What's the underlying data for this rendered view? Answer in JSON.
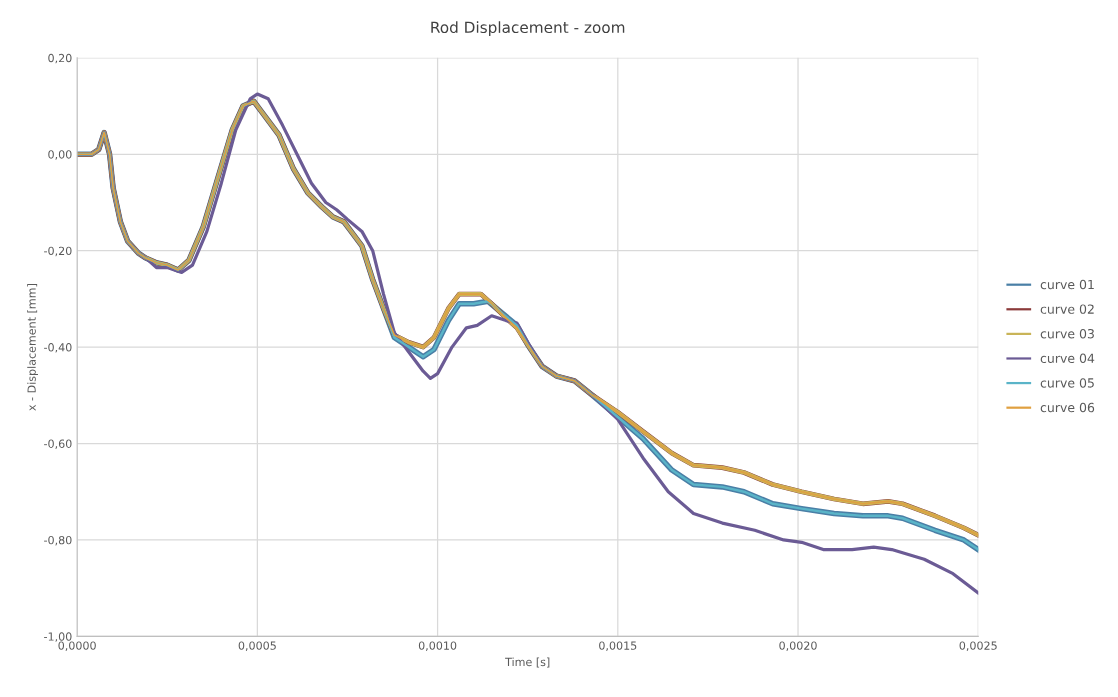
{
  "chart_data": {
    "type": "line",
    "title": "Rod Displacement - zoom",
    "xlabel": "Time [s]",
    "ylabel": "x - Displacement [mm]",
    "xlim": [
      0,
      0.0025
    ],
    "ylim": [
      -1.0,
      0.2
    ],
    "xticks": [
      {
        "value": 0,
        "label": "0,0000"
      },
      {
        "value": 0.0005,
        "label": "0,0005"
      },
      {
        "value": 0.001,
        "label": "0,0010"
      },
      {
        "value": 0.0015,
        "label": "0,0015"
      },
      {
        "value": 0.002,
        "label": "0,0020"
      },
      {
        "value": 0.0025,
        "label": "0,0025"
      }
    ],
    "yticks": [
      {
        "value": 0.2,
        "label": "0,20"
      },
      {
        "value": 0,
        "label": "0,00"
      },
      {
        "value": -0.2,
        "label": "-0,20"
      },
      {
        "value": -0.4,
        "label": "-0,40"
      },
      {
        "value": -0.6,
        "label": "-0,60"
      },
      {
        "value": -0.8,
        "label": "-0,80"
      },
      {
        "value": -1.0,
        "label": "-1,00"
      }
    ],
    "grid": true,
    "legend": "right",
    "marker": "none",
    "line_style": "solid",
    "series": [
      {
        "name": "curve 01",
        "color": "#4a7fa6",
        "x": [
          0,
          4e-05,
          6e-05,
          7.5e-05,
          9e-05,
          0.0001,
          0.00012,
          0.00014,
          0.00017,
          0.00019,
          0.00022,
          0.00025,
          0.00028,
          0.00031,
          0.00035,
          0.00039,
          0.00043,
          0.00046,
          0.00049,
          0.00051,
          0.00056,
          0.0006,
          0.00064,
          0.00068,
          0.00071,
          0.00074,
          0.00076,
          0.00079,
          0.00082,
          0.00085,
          0.00088,
          0.00092,
          0.00096,
          0.00099,
          0.00103,
          0.00106,
          0.0011,
          0.00114,
          0.00118,
          0.00122,
          0.00125,
          0.00129,
          0.00133,
          0.00138,
          0.00143,
          0.0015,
          0.00157,
          0.00165,
          0.00171,
          0.00179,
          0.00185,
          0.00193,
          0.00201,
          0.0021,
          0.00218,
          0.00225,
          0.00229,
          0.00238,
          0.00246,
          0.0025
        ],
        "values": [
          0,
          0,
          0.01,
          0.045,
          0.0,
          -0.07,
          -0.14,
          -0.18,
          -0.205,
          -0.215,
          -0.225,
          -0.23,
          -0.24,
          -0.22,
          -0.15,
          -0.05,
          0.05,
          0.1,
          0.11,
          0.09,
          0.04,
          -0.03,
          -0.08,
          -0.11,
          -0.13,
          -0.14,
          -0.16,
          -0.19,
          -0.26,
          -0.32,
          -0.38,
          -0.4,
          -0.42,
          -0.405,
          -0.345,
          -0.31,
          -0.31,
          -0.305,
          -0.33,
          -0.355,
          -0.395,
          -0.44,
          -0.46,
          -0.47,
          -0.5,
          -0.545,
          -0.59,
          -0.655,
          -0.685,
          -0.69,
          -0.7,
          -0.725,
          -0.735,
          -0.745,
          -0.75,
          -0.75,
          -0.755,
          -0.78,
          -0.8,
          -0.82
        ]
      },
      {
        "name": "curve 02",
        "color": "#8b3a3a",
        "x": [
          0,
          4e-05,
          6e-05,
          7.5e-05,
          9e-05,
          0.0001,
          0.00012,
          0.00014,
          0.00017,
          0.00019,
          0.00022,
          0.00025,
          0.00028,
          0.00031,
          0.00035,
          0.00039,
          0.00043,
          0.00046,
          0.00049,
          0.00051,
          0.00056,
          0.0006,
          0.00064,
          0.00068,
          0.00071,
          0.00074,
          0.00076,
          0.00079,
          0.00082,
          0.00085,
          0.00088,
          0.00092,
          0.00096,
          0.00099,
          0.00103,
          0.00106,
          0.00108,
          0.00112,
          0.00115,
          0.00119,
          0.00122,
          0.00125,
          0.00129,
          0.00133,
          0.00138,
          0.00143,
          0.0015,
          0.00157,
          0.00165,
          0.00171,
          0.00179,
          0.00185,
          0.00193,
          0.00201,
          0.0021,
          0.00218,
          0.00225,
          0.00229,
          0.00238,
          0.00246,
          0.0025
        ],
        "values": [
          0,
          0,
          0.01,
          0.045,
          0.0,
          -0.07,
          -0.14,
          -0.18,
          -0.205,
          -0.215,
          -0.225,
          -0.23,
          -0.24,
          -0.22,
          -0.15,
          -0.05,
          0.05,
          0.1,
          0.11,
          0.09,
          0.04,
          -0.03,
          -0.08,
          -0.11,
          -0.13,
          -0.14,
          -0.16,
          -0.19,
          -0.26,
          -0.32,
          -0.375,
          -0.39,
          -0.4,
          -0.38,
          -0.32,
          -0.29,
          -0.29,
          -0.29,
          -0.31,
          -0.34,
          -0.36,
          -0.395,
          -0.44,
          -0.46,
          -0.47,
          -0.5,
          -0.535,
          -0.575,
          -0.62,
          -0.645,
          -0.65,
          -0.66,
          -0.685,
          -0.7,
          -0.715,
          -0.725,
          -0.72,
          -0.725,
          -0.75,
          -0.775,
          -0.79
        ]
      },
      {
        "name": "curve 03",
        "color": "#c9b458",
        "x": [
          0,
          4e-05,
          6e-05,
          7.5e-05,
          9e-05,
          0.0001,
          0.00012,
          0.00014,
          0.00017,
          0.00019,
          0.00022,
          0.00025,
          0.00028,
          0.00031,
          0.00035,
          0.00039,
          0.00043,
          0.00046,
          0.00049,
          0.00051,
          0.00056,
          0.0006,
          0.00064,
          0.00068,
          0.00071,
          0.00074,
          0.00076,
          0.00079,
          0.00082,
          0.00085,
          0.00088,
          0.00092,
          0.00096,
          0.00099,
          0.00103,
          0.00106,
          0.00108,
          0.00112,
          0.00115,
          0.00119,
          0.00122,
          0.00125,
          0.00129,
          0.00133,
          0.00138,
          0.00143,
          0.0015,
          0.00157,
          0.00165,
          0.00171,
          0.00179,
          0.00185,
          0.00193,
          0.00201,
          0.0021,
          0.00218,
          0.00225,
          0.00229,
          0.00238,
          0.00246,
          0.0025
        ],
        "values": [
          0,
          0,
          0.01,
          0.045,
          0.0,
          -0.07,
          -0.14,
          -0.18,
          -0.205,
          -0.215,
          -0.225,
          -0.23,
          -0.24,
          -0.22,
          -0.15,
          -0.05,
          0.05,
          0.1,
          0.11,
          0.09,
          0.04,
          -0.03,
          -0.08,
          -0.11,
          -0.13,
          -0.14,
          -0.16,
          -0.19,
          -0.26,
          -0.32,
          -0.375,
          -0.39,
          -0.4,
          -0.38,
          -0.32,
          -0.29,
          -0.29,
          -0.29,
          -0.31,
          -0.34,
          -0.36,
          -0.395,
          -0.44,
          -0.46,
          -0.47,
          -0.5,
          -0.535,
          -0.575,
          -0.62,
          -0.645,
          -0.65,
          -0.66,
          -0.685,
          -0.7,
          -0.715,
          -0.725,
          -0.72,
          -0.725,
          -0.75,
          -0.775,
          -0.79
        ]
      },
      {
        "name": "curve 04",
        "color": "#6b5b95",
        "x": [
          0,
          4e-05,
          6e-05,
          7.5e-05,
          9e-05,
          0.0001,
          0.00012,
          0.00014,
          0.00017,
          0.00019,
          0.00022,
          0.00025,
          0.00029,
          0.00032,
          0.00036,
          0.0004,
          0.00044,
          0.00048,
          0.0005,
          0.00053,
          0.00057,
          0.00061,
          0.00065,
          0.00069,
          0.00072,
          0.00075,
          0.00079,
          0.00082,
          0.00085,
          0.00088,
          0.00092,
          0.00096,
          0.00098,
          0.001,
          0.00104,
          0.00108,
          0.00111,
          0.00115,
          0.00119,
          0.00122,
          0.00125,
          0.00129,
          0.00133,
          0.00138,
          0.00143,
          0.0015,
          0.00157,
          0.00164,
          0.00171,
          0.00179,
          0.00188,
          0.00196,
          0.00201,
          0.00207,
          0.00215,
          0.00221,
          0.00226,
          0.00235,
          0.00243,
          0.0025
        ],
        "values": [
          0,
          0,
          0.01,
          0.045,
          0.0,
          -0.07,
          -0.14,
          -0.18,
          -0.205,
          -0.215,
          -0.235,
          -0.235,
          -0.245,
          -0.23,
          -0.16,
          -0.06,
          0.05,
          0.115,
          0.125,
          0.115,
          0.06,
          0.0,
          -0.06,
          -0.1,
          -0.115,
          -0.135,
          -0.16,
          -0.2,
          -0.29,
          -0.37,
          -0.41,
          -0.45,
          -0.465,
          -0.455,
          -0.4,
          -0.36,
          -0.355,
          -0.335,
          -0.345,
          -0.35,
          -0.39,
          -0.44,
          -0.46,
          -0.47,
          -0.5,
          -0.55,
          -0.63,
          -0.7,
          -0.745,
          -0.765,
          -0.78,
          -0.8,
          -0.805,
          -0.82,
          -0.82,
          -0.815,
          -0.82,
          -0.84,
          -0.87,
          -0.91
        ]
      },
      {
        "name": "curve 05",
        "color": "#5ab4c8",
        "x": [
          0,
          4e-05,
          6e-05,
          7.5e-05,
          9e-05,
          0.0001,
          0.00012,
          0.00014,
          0.00017,
          0.00019,
          0.00022,
          0.00025,
          0.00028,
          0.00031,
          0.00035,
          0.00039,
          0.00043,
          0.00046,
          0.00049,
          0.00051,
          0.00056,
          0.0006,
          0.00064,
          0.00068,
          0.00071,
          0.00074,
          0.00076,
          0.00079,
          0.00082,
          0.00085,
          0.00088,
          0.00092,
          0.00096,
          0.00099,
          0.00103,
          0.00106,
          0.0011,
          0.00114,
          0.00118,
          0.00122,
          0.00125,
          0.00129,
          0.00133,
          0.00138,
          0.00143,
          0.0015,
          0.00157,
          0.00165,
          0.00171,
          0.00179,
          0.00185,
          0.00193,
          0.00201,
          0.0021,
          0.00218,
          0.00225,
          0.00229,
          0.00238,
          0.00246,
          0.0025
        ],
        "values": [
          0,
          0,
          0.01,
          0.045,
          0.0,
          -0.07,
          -0.14,
          -0.18,
          -0.205,
          -0.215,
          -0.225,
          -0.23,
          -0.24,
          -0.22,
          -0.15,
          -0.05,
          0.05,
          0.1,
          0.11,
          0.09,
          0.04,
          -0.03,
          -0.08,
          -0.11,
          -0.13,
          -0.14,
          -0.16,
          -0.19,
          -0.26,
          -0.32,
          -0.38,
          -0.4,
          -0.42,
          -0.405,
          -0.345,
          -0.31,
          -0.31,
          -0.305,
          -0.33,
          -0.355,
          -0.395,
          -0.44,
          -0.46,
          -0.47,
          -0.5,
          -0.545,
          -0.59,
          -0.655,
          -0.685,
          -0.69,
          -0.7,
          -0.725,
          -0.735,
          -0.745,
          -0.75,
          -0.75,
          -0.755,
          -0.78,
          -0.8,
          -0.82
        ]
      },
      {
        "name": "curve 06",
        "color": "#e0a040",
        "x": [
          0,
          4e-05,
          6e-05,
          7.5e-05,
          9e-05,
          0.0001,
          0.00012,
          0.00014,
          0.00017,
          0.00019,
          0.00022,
          0.00025,
          0.00028,
          0.00031,
          0.00035,
          0.00039,
          0.00043,
          0.00046,
          0.00049,
          0.00051,
          0.00056,
          0.0006,
          0.00064,
          0.00068,
          0.00071,
          0.00074,
          0.00076,
          0.00079,
          0.00082,
          0.00085,
          0.00088,
          0.00092,
          0.00096,
          0.00099,
          0.00103,
          0.00106,
          0.00108,
          0.00112,
          0.00115,
          0.00119,
          0.00122,
          0.00125,
          0.00129,
          0.00133,
          0.00138,
          0.00143,
          0.0015,
          0.00157,
          0.00165,
          0.00171,
          0.00179,
          0.00185,
          0.00193,
          0.00201,
          0.0021,
          0.00218,
          0.00225,
          0.00229,
          0.00238,
          0.00246,
          0.0025
        ],
        "values": [
          0,
          0,
          0.01,
          0.045,
          0.0,
          -0.07,
          -0.14,
          -0.18,
          -0.205,
          -0.215,
          -0.225,
          -0.23,
          -0.24,
          -0.22,
          -0.15,
          -0.05,
          0.05,
          0.1,
          0.11,
          0.09,
          0.04,
          -0.03,
          -0.08,
          -0.11,
          -0.13,
          -0.14,
          -0.16,
          -0.19,
          -0.26,
          -0.32,
          -0.375,
          -0.39,
          -0.4,
          -0.38,
          -0.32,
          -0.29,
          -0.29,
          -0.29,
          -0.31,
          -0.34,
          -0.36,
          -0.395,
          -0.44,
          -0.46,
          -0.47,
          -0.5,
          -0.535,
          -0.575,
          -0.62,
          -0.645,
          -0.65,
          -0.66,
          -0.685,
          -0.7,
          -0.715,
          -0.725,
          -0.72,
          -0.725,
          -0.75,
          -0.775,
          -0.79
        ]
      }
    ]
  }
}
